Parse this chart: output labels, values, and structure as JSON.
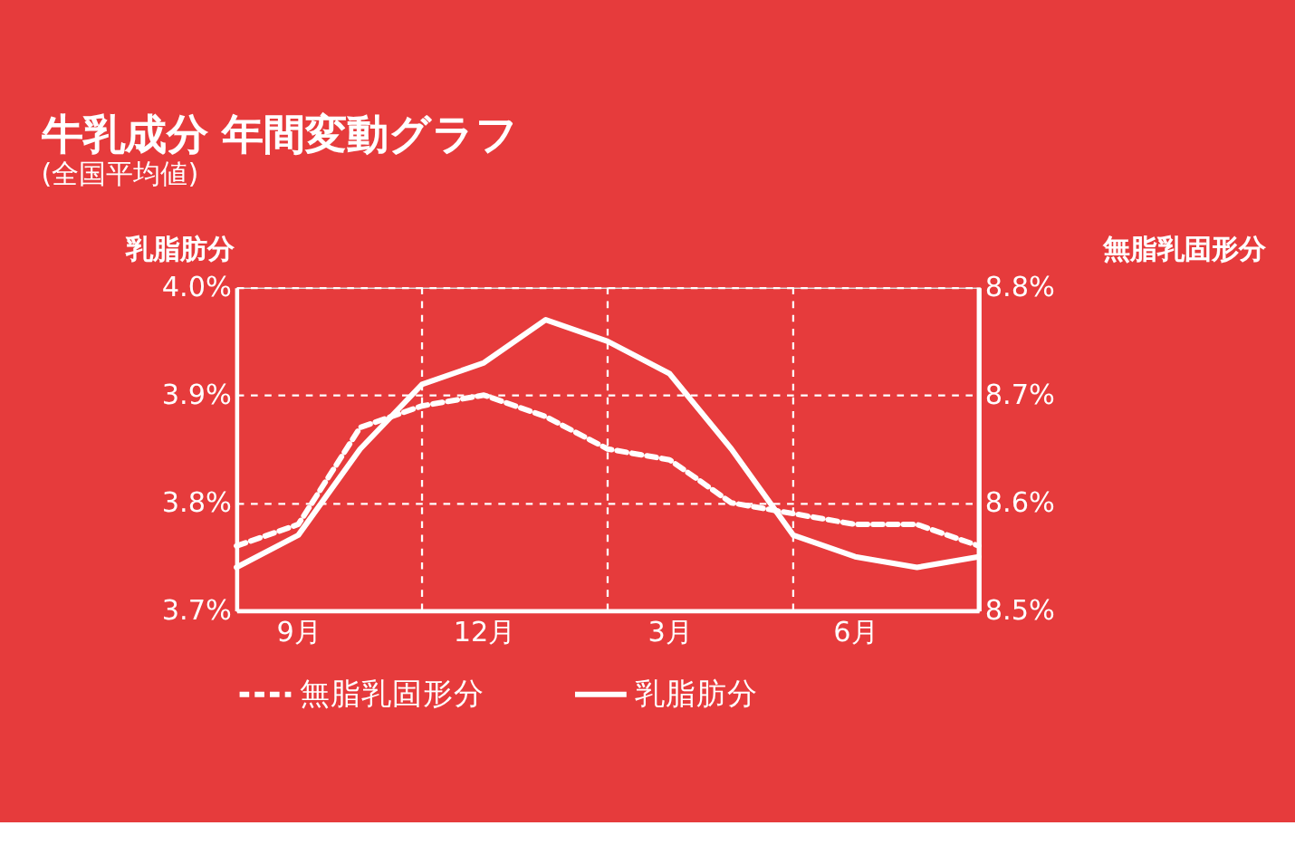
{
  "chart_data": {
    "type": "line",
    "title": "牛乳成分 年間変動グラフ",
    "subtitle": "(全国平均値)",
    "ylabel": "乳脂肪分",
    "y2label": "無脂乳固形分",
    "categories": [
      null,
      "9月",
      null,
      null,
      "12月",
      null,
      null,
      "3月",
      null,
      null,
      "6月",
      null,
      null
    ],
    "ylim": [
      3.7,
      4.0
    ],
    "yticks": [
      {
        "value": 3.7,
        "label": "3.7%"
      },
      {
        "value": 3.8,
        "label": "3.8%"
      },
      {
        "value": 3.9,
        "label": "3.9%"
      },
      {
        "value": 4.0,
        "label": "4.0%"
      }
    ],
    "y2lim": [
      8.5,
      8.8
    ],
    "y2ticks": [
      {
        "value": 8.5,
        "label": "8.5%"
      },
      {
        "value": 8.6,
        "label": "8.6%"
      },
      {
        "value": 8.7,
        "label": "8.7%"
      },
      {
        "value": 8.8,
        "label": "8.8%"
      }
    ],
    "series": [
      {
        "name": "無脂乳固形分",
        "color": "#ffffff",
        "line_style": "dashed",
        "axis": "y2",
        "values": [
          8.56,
          8.58,
          8.67,
          8.69,
          8.7,
          8.68,
          8.65,
          8.64,
          8.6,
          8.59,
          8.58,
          8.58,
          8.56
        ]
      },
      {
        "name": "乳脂肪分",
        "color": "#ffffff",
        "line_style": "solid",
        "values": [
          3.74,
          3.77,
          3.85,
          3.91,
          3.93,
          3.97,
          3.95,
          3.92,
          3.85,
          3.77,
          3.75,
          3.74,
          3.75
        ]
      }
    ],
    "grid": true,
    "legend": "bottom",
    "marker": "none"
  }
}
